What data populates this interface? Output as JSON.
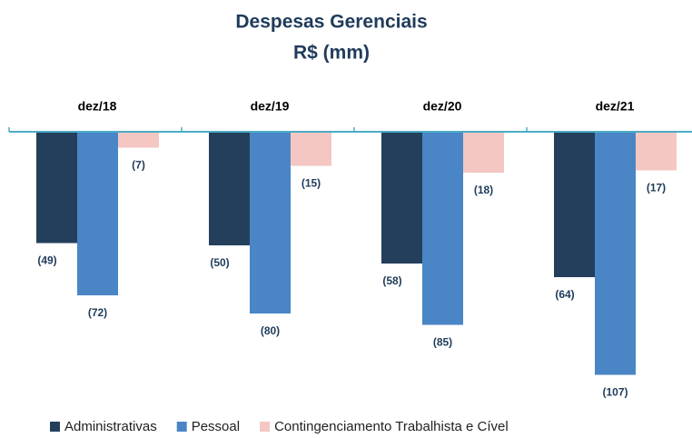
{
  "chart_data": {
    "type": "bar",
    "title": "Despesas Gerenciais",
    "subtitle": "R$ (mm)",
    "categories": [
      "dez/18",
      "dez/19",
      "dez/20",
      "dez/21"
    ],
    "series": [
      {
        "name": "Administrativas",
        "color": "#243f5c",
        "values": [
          -49,
          -50,
          -58,
          -64
        ],
        "value_labels": [
          "(49)",
          "(50)",
          "(58)",
          "(64)"
        ]
      },
      {
        "name": "Pessoal",
        "color": "#4a86c5",
        "values": [
          -72,
          -80,
          -85,
          -107
        ],
        "value_labels": [
          "(72)",
          "(80)",
          "(85)",
          "(107)"
        ]
      },
      {
        "name": "Contingenciamento Trabalhista e Cível",
        "color": "#f4c7c3",
        "values": [
          -7,
          -15,
          -18,
          -17
        ],
        "value_labels": [
          "(7)",
          "(15)",
          "(18)",
          "(17)"
        ]
      }
    ],
    "legend": "bottom"
  }
}
